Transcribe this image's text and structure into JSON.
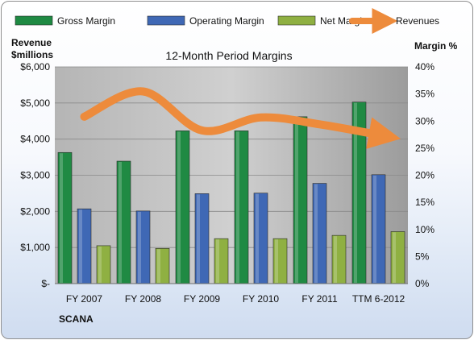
{
  "chart_data": {
    "type": "bar",
    "title": "12-Month Period Margins",
    "company": "SCANA",
    "categories": [
      "FY 2007",
      "FY 2008",
      "FY 2009",
      "FY 2010",
      "FY 2011",
      "TTM 6-2012"
    ],
    "left_axis": {
      "label_line1": "Revenue",
      "label_line2": "$millions",
      "ylim": [
        0,
        6000
      ],
      "ticks": [
        "$-",
        "$1,000",
        "$2,000",
        "$3,000",
        "$4,000",
        "$5,000",
        "$6,000"
      ]
    },
    "right_axis": {
      "label": "Margin %",
      "ylim": [
        0,
        40
      ],
      "ticks": [
        "0%",
        "5%",
        "10%",
        "15%",
        "20%",
        "25%",
        "30%",
        "35%",
        "40%"
      ]
    },
    "legend_position": "top",
    "grid": true,
    "series": [
      {
        "name": "Gross Margin",
        "kind": "bar",
        "axis": "right",
        "color": "#1f8a43",
        "values": [
          24.2,
          22.6,
          28.2,
          28.2,
          30.8,
          33.5
        ]
      },
      {
        "name": "Operating Margin",
        "kind": "bar",
        "axis": "right",
        "color": "#3f68b5",
        "values": [
          13.8,
          13.4,
          16.6,
          16.7,
          18.5,
          20.1
        ]
      },
      {
        "name": "Net Margin",
        "kind": "bar",
        "axis": "right",
        "color": "#8fb042",
        "values": [
          7.0,
          6.5,
          8.3,
          8.3,
          8.9,
          9.6
        ]
      },
      {
        "name": "Revenues",
        "kind": "line",
        "axis": "left",
        "color": "#ed8b3c",
        "values": [
          4620,
          5320,
          4240,
          4600,
          4410,
          4120
        ]
      }
    ]
  }
}
